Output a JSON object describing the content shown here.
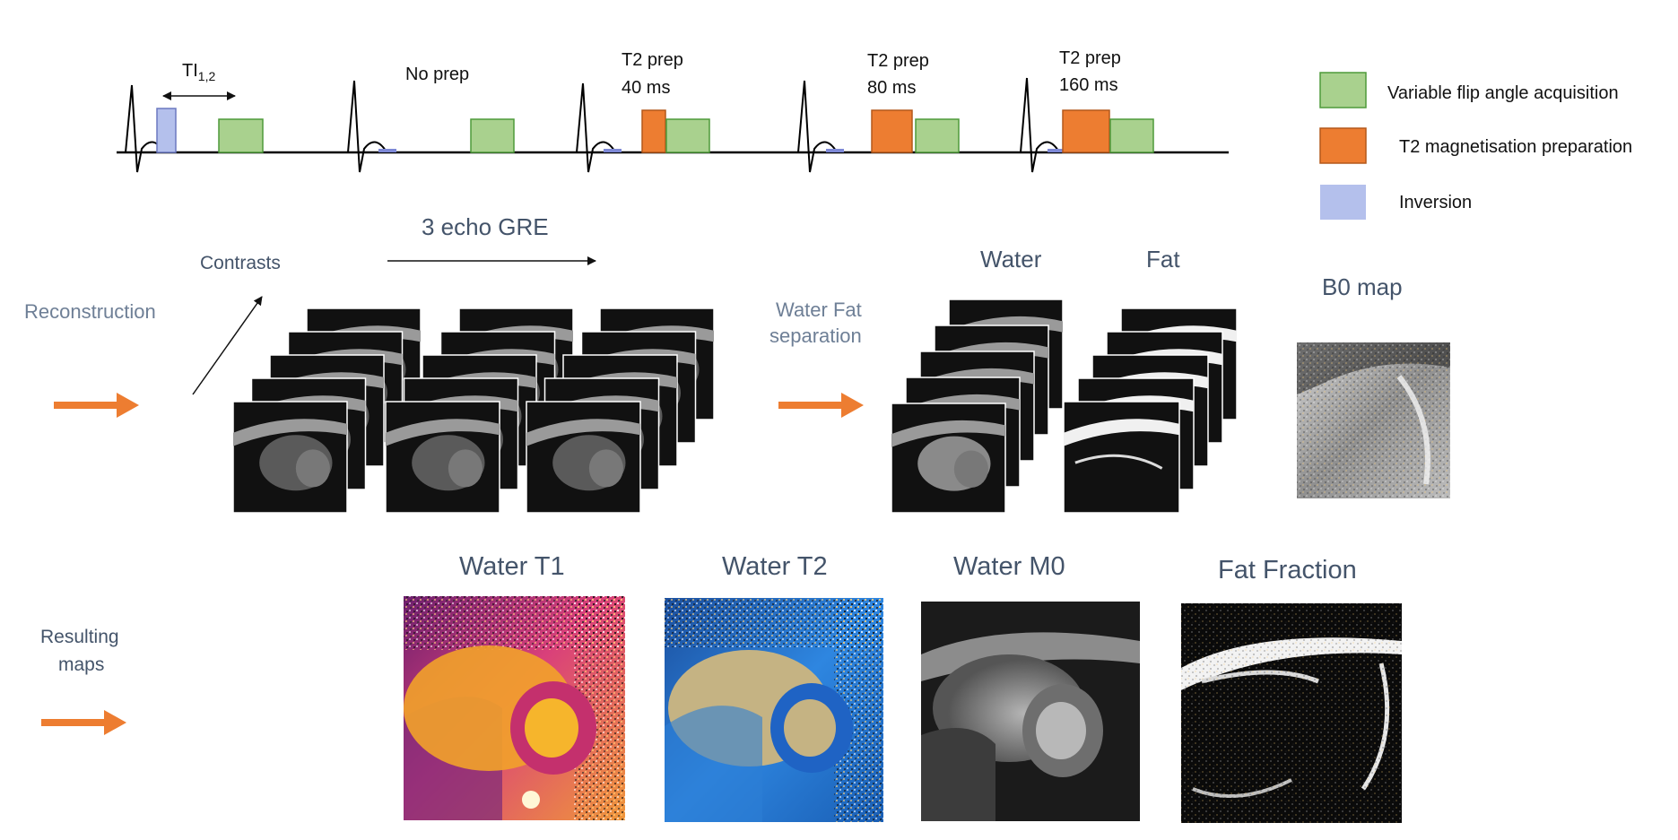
{
  "timeline": {
    "ti_label": "TI",
    "ti_sub": "1,2",
    "segments": [
      {
        "line1": "No prep",
        "line2": ""
      },
      {
        "line1": "T2 prep",
        "line2": "40 ms"
      },
      {
        "line1": "T2 prep",
        "line2": "80 ms"
      },
      {
        "line1": "T2 prep",
        "line2": "160 ms"
      }
    ]
  },
  "legend": {
    "items": [
      {
        "label": "Variable flip angle acquisition",
        "color": "#a9d18e"
      },
      {
        "label": "T2 magnetisation preparation",
        "color": "#ed7d31"
      },
      {
        "label": "Inversion",
        "color": "#b4c0ec"
      }
    ]
  },
  "reconstruction": {
    "label": "Reconstruction",
    "contrasts_label": "Contrasts",
    "echo_label": "3 echo GRE",
    "separation_line1": "Water Fat",
    "separation_line2": "separation",
    "water_label": "Water",
    "fat_label": "Fat",
    "b0_label": "B0 map"
  },
  "results": {
    "label_line1": "Resulting",
    "label_line2": "maps",
    "maps": [
      {
        "title": "Water T1"
      },
      {
        "title": "Water T2"
      },
      {
        "title": "Water M0"
      },
      {
        "title": "Fat Fraction"
      }
    ]
  },
  "colors": {
    "accent_orange": "#ed7d31",
    "acq_green": "#a9d18e",
    "inversion_blue": "#b4c0ec",
    "slate_text": "#44546a"
  }
}
